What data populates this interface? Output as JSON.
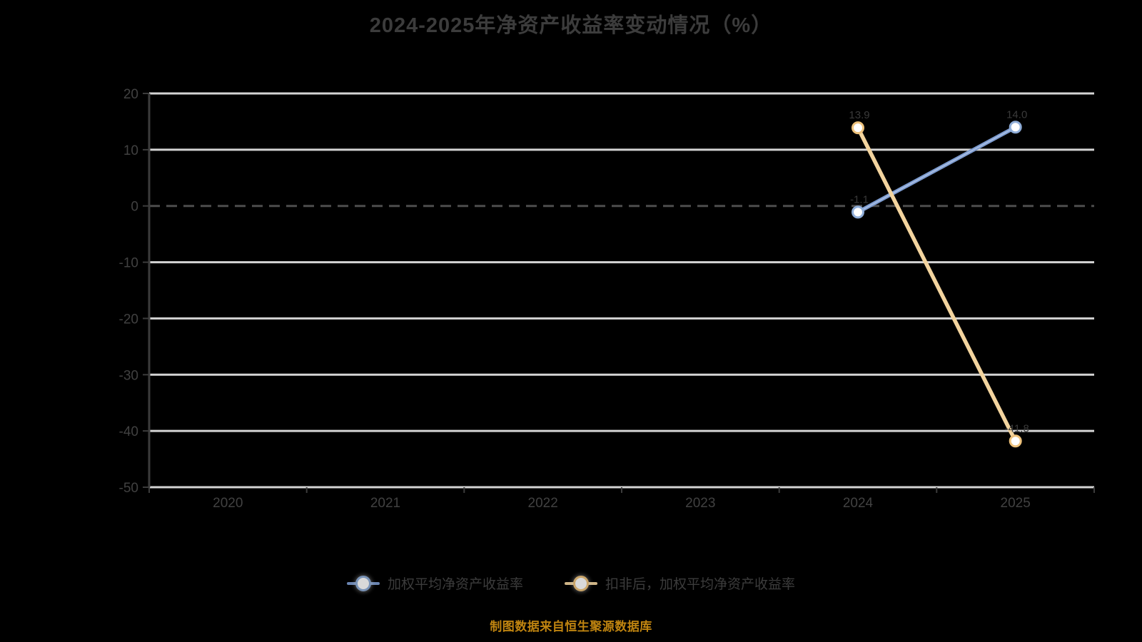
{
  "title": {
    "text": "2024-2025年净资产收益率变动情况（%）"
  },
  "chart_data": {
    "type": "line",
    "title": "2024-2025年净资产收益率变动情况（%）",
    "categories": [
      "2020",
      "2021",
      "2022",
      "2023",
      "2024",
      "2025"
    ],
    "series": [
      {
        "name": "加权平均净资产收益率",
        "color": "#7d9cd0",
        "marker_ring": "#8fadd8",
        "values": [
          null,
          null,
          null,
          null,
          -1.1,
          14.0
        ],
        "point_labels": [
          "",
          "",
          "",
          "",
          "-1.1",
          "14.0"
        ]
      },
      {
        "name": "扣非后，加权平均净资产收益率",
        "color": "#f3d49e",
        "marker_ring": "#eec27c",
        "values": [
          null,
          null,
          null,
          null,
          13.9,
          -41.8
        ],
        "point_labels": [
          "",
          "",
          "",
          "",
          "13.9",
          "-41.8"
        ]
      }
    ],
    "xlabel": "",
    "ylabel": "",
    "ylim": [
      -50,
      20
    ],
    "y_ticks": [
      20,
      10,
      0,
      -10,
      -20,
      -30,
      -40,
      -50
    ],
    "grid": true,
    "zero_line_style": "dashed",
    "legend_position": "bottom"
  },
  "footer": {
    "text": "制图数据来自恒生聚源数据库"
  },
  "colors": {
    "background": "#000000",
    "grid_line": "#d4d4d4",
    "zero_line": "#4d4d4d",
    "axis_line": "#3c3c3c",
    "tick_label": "#414141",
    "title_text": "#3c3c3c",
    "legend_text": "#3c3c3c",
    "footer_text": "#bf8410",
    "point_label": "#3a3a3a"
  }
}
